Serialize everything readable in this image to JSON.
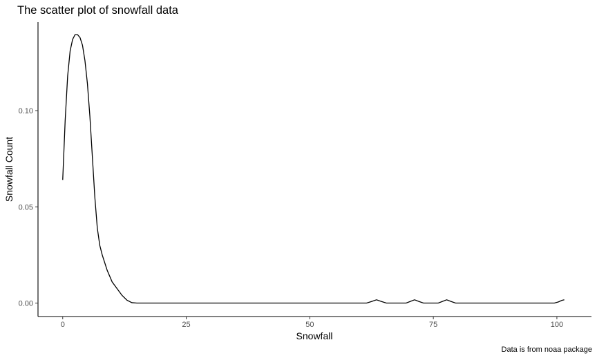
{
  "chart_data": {
    "type": "line",
    "title": "The scatter plot of snowfall data",
    "xlabel": "Snowfall",
    "ylabel": "Snowfall Count",
    "caption": "Data is from noaa package",
    "xlim": [
      -5,
      107
    ],
    "ylim": [
      -0.007,
      0.146
    ],
    "x_ticks": [
      0,
      25,
      50,
      75,
      100
    ],
    "x_tick_labels": [
      "0",
      "25",
      "50",
      "75",
      "100"
    ],
    "y_ticks": [
      0.0,
      0.05,
      0.1
    ],
    "y_tick_labels": [
      "0.00",
      "0.05",
      "0.10"
    ],
    "grid": false,
    "series": [
      {
        "line_color": "#000000",
        "points": [
          [
            0,
            0.064
          ],
          [
            0.5,
            0.095
          ],
          [
            1,
            0.118
          ],
          [
            1.5,
            0.131
          ],
          [
            2,
            0.137
          ],
          [
            2.5,
            0.1395
          ],
          [
            3,
            0.1395
          ],
          [
            3.5,
            0.138
          ],
          [
            4,
            0.134
          ],
          [
            4.5,
            0.126
          ],
          [
            5,
            0.114
          ],
          [
            5.5,
            0.097
          ],
          [
            6,
            0.076
          ],
          [
            6.5,
            0.055
          ],
          [
            7,
            0.039
          ],
          [
            7.5,
            0.03
          ],
          [
            8,
            0.025
          ],
          [
            9,
            0.017
          ],
          [
            10,
            0.011
          ],
          [
            11,
            0.0075
          ],
          [
            12,
            0.004
          ],
          [
            13,
            0.0015
          ],
          [
            14,
            0.0002
          ],
          [
            15,
            0.0
          ],
          [
            20,
            0.0
          ],
          [
            30,
            0.0
          ],
          [
            40,
            0.0
          ],
          [
            50,
            0.0
          ],
          [
            60,
            0.0
          ],
          [
            61.5,
            0.0
          ],
          [
            62.5,
            0.0008
          ],
          [
            63.5,
            0.0017
          ],
          [
            64.5,
            0.0008
          ],
          [
            65.5,
            0.0
          ],
          [
            69.5,
            0.0
          ],
          [
            70.3,
            0.0008
          ],
          [
            71.2,
            0.0017
          ],
          [
            72.1,
            0.0008
          ],
          [
            73,
            0.0
          ],
          [
            76,
            0.0
          ],
          [
            76.8,
            0.0008
          ],
          [
            77.7,
            0.0017
          ],
          [
            78.6,
            0.0008
          ],
          [
            79.5,
            0.0
          ],
          [
            90,
            0.0
          ],
          [
            99.5,
            0.0
          ],
          [
            100.3,
            0.0006
          ],
          [
            101,
            0.0014
          ],
          [
            101.5,
            0.0017
          ]
        ]
      }
    ]
  }
}
